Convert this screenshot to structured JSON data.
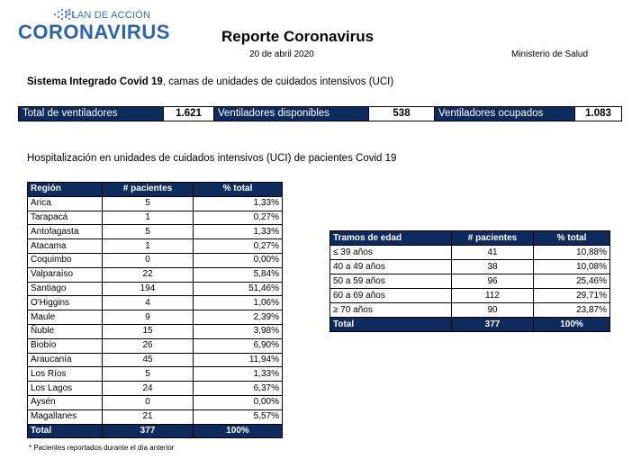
{
  "logo": {
    "top_text": "PLAN DE ACCIÓN",
    "main_text": "CORONAVIRUS"
  },
  "header": {
    "title": "Reporte Coronavirus",
    "date": "20 de abril 2020",
    "ministry": "Ministerio de Salud"
  },
  "system": {
    "bold": "Sistema Integrado Covid 19",
    "rest": ", camas de unidades de cuidados intensivos (UCI)"
  },
  "ventilators": {
    "total_label": "Total de ventiladores",
    "total_value": "1.621",
    "available_label": "Ventiladores disponibles",
    "available_value": "538",
    "occupied_label": "Ventiladores ocupados",
    "occupied_value": "1.083"
  },
  "hospitalization_title": "Hospitalización en unidades de cuidados intensivos (UCI) de pacientes Covid 19",
  "region_table": {
    "headers": [
      "Región",
      "# pacientes",
      "% total"
    ],
    "rows": [
      [
        "Arica",
        "5",
        "1,33%"
      ],
      [
        "Tarapacá",
        "1",
        "0,27%"
      ],
      [
        "Antofagasta",
        "5",
        "1,33%"
      ],
      [
        "Atacama",
        "1",
        "0,27%"
      ],
      [
        "Coquimbo",
        "0",
        "0,00%"
      ],
      [
        "Valparaíso",
        "22",
        "5,84%"
      ],
      [
        "Santiago",
        "194",
        "51,46%"
      ],
      [
        "O'Higgins",
        "4",
        "1,06%"
      ],
      [
        "Maule",
        "9",
        "2,39%"
      ],
      [
        "Ñuble",
        "15",
        "3,98%"
      ],
      [
        "Biobío",
        "26",
        "6,90%"
      ],
      [
        "Araucanía",
        "45",
        "11,94%"
      ],
      [
        "Los Ríos",
        "5",
        "1,33%"
      ],
      [
        "Los Lagos",
        "24",
        "6,37%"
      ],
      [
        "Aysén",
        "0",
        "0,00%"
      ],
      [
        "Magallanes",
        "21",
        "5,57%"
      ]
    ],
    "total": [
      "Total",
      "377",
      "100%"
    ]
  },
  "age_table": {
    "headers": [
      "Tramos de edad",
      "# pacientes",
      "% total"
    ],
    "rows": [
      [
        "≤ 39 años",
        "41",
        "10,88%"
      ],
      [
        "40 a 49 años",
        "38",
        "10,08%"
      ],
      [
        "50 a 59 años",
        "96",
        "25,46%"
      ],
      [
        "60 a 69 años",
        "112",
        "29,71%"
      ],
      [
        "≥ 70 años",
        "90",
        "23,87%"
      ]
    ],
    "total": [
      "Total",
      "377",
      "100%"
    ]
  },
  "footnote": "* Pacientes reportados durante el día anterior",
  "colors": {
    "navy": "#0d2a5c",
    "logo_blue": "#2b63ae"
  }
}
